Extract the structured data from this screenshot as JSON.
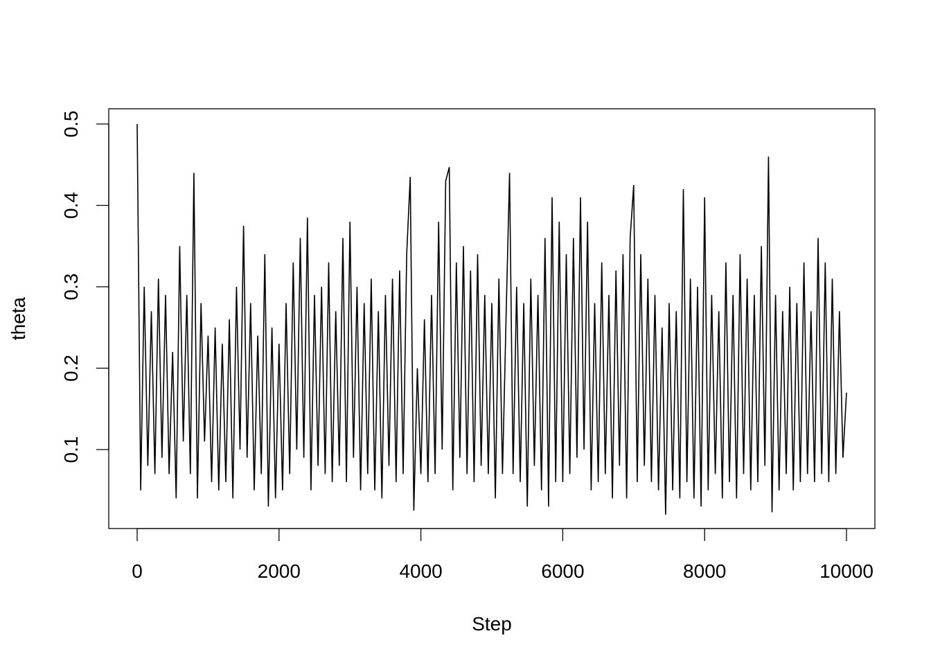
{
  "chart_data": {
    "type": "line",
    "title": "",
    "xlabel": "Step",
    "ylabel": "theta",
    "xlim": [
      0,
      10000
    ],
    "ylim": [
      0.02,
      0.5
    ],
    "grid": false,
    "x_ticks": [
      "0",
      "2000",
      "4000",
      "6000",
      "8000",
      "10000"
    ],
    "x_tick_values": [
      0,
      2000,
      4000,
      6000,
      8000,
      10000
    ],
    "y_ticks": [
      "0.1",
      "0.2",
      "0.3",
      "0.4",
      "0.5"
    ],
    "y_tick_values": [
      0.1,
      0.2,
      0.3,
      0.4,
      0.5
    ],
    "line_color": "#000000",
    "series": [
      {
        "x": [
          0,
          50,
          100,
          150,
          200,
          250,
          300,
          350,
          400,
          450,
          500,
          550,
          600,
          650,
          700,
          750,
          800,
          850,
          900,
          950,
          1000,
          1050,
          1100,
          1150,
          1200,
          1250,
          1300,
          1350,
          1400,
          1450,
          1500,
          1550,
          1600,
          1650,
          1700,
          1750,
          1800,
          1850,
          1900,
          1950,
          2000,
          2050,
          2100,
          2150,
          2200,
          2250,
          2300,
          2350,
          2400,
          2450,
          2500,
          2550,
          2600,
          2650,
          2700,
          2750,
          2800,
          2850,
          2900,
          2950,
          3000,
          3050,
          3100,
          3150,
          3200,
          3250,
          3300,
          3350,
          3400,
          3450,
          3500,
          3550,
          3600,
          3650,
          3700,
          3750,
          3800,
          3850,
          3900,
          3950,
          4000,
          4050,
          4100,
          4150,
          4200,
          4250,
          4300,
          4350,
          4400,
          4450,
          4500,
          4550,
          4600,
          4650,
          4700,
          4750,
          4800,
          4850,
          4900,
          4950,
          5000,
          5050,
          5100,
          5150,
          5200,
          5250,
          5300,
          5350,
          5400,
          5450,
          5500,
          5550,
          5600,
          5650,
          5700,
          5750,
          5800,
          5850,
          5900,
          5950,
          6000,
          6050,
          6100,
          6150,
          6200,
          6250,
          6300,
          6350,
          6400,
          6450,
          6500,
          6550,
          6600,
          6650,
          6700,
          6750,
          6800,
          6850,
          6900,
          6950,
          7000,
          7050,
          7100,
          7150,
          7200,
          7250,
          7300,
          7350,
          7400,
          7450,
          7500,
          7550,
          7600,
          7650,
          7700,
          7750,
          7800,
          7850,
          7900,
          7950,
          8000,
          8050,
          8100,
          8150,
          8200,
          8250,
          8300,
          8350,
          8400,
          8450,
          8500,
          8550,
          8600,
          8650,
          8700,
          8750,
          8800,
          8850,
          8900,
          8950,
          9000,
          9050,
          9100,
          9150,
          9200,
          9250,
          9300,
          9350,
          9400,
          9450,
          9500,
          9550,
          9600,
          9650,
          9700,
          9750,
          9800,
          9850,
          9900,
          9950,
          10000
        ],
        "y": [
          0.5,
          0.05,
          0.3,
          0.08,
          0.27,
          0.07,
          0.31,
          0.09,
          0.29,
          0.07,
          0.22,
          0.04,
          0.35,
          0.11,
          0.29,
          0.07,
          0.44,
          0.04,
          0.28,
          0.11,
          0.24,
          0.06,
          0.25,
          0.05,
          0.23,
          0.06,
          0.26,
          0.04,
          0.3,
          0.1,
          0.375,
          0.09,
          0.28,
          0.05,
          0.24,
          0.07,
          0.34,
          0.03,
          0.25,
          0.04,
          0.23,
          0.05,
          0.28,
          0.07,
          0.33,
          0.1,
          0.36,
          0.09,
          0.385,
          0.05,
          0.29,
          0.08,
          0.3,
          0.07,
          0.33,
          0.06,
          0.27,
          0.08,
          0.36,
          0.06,
          0.38,
          0.09,
          0.3,
          0.05,
          0.28,
          0.07,
          0.31,
          0.05,
          0.27,
          0.04,
          0.29,
          0.08,
          0.31,
          0.06,
          0.32,
          0.07,
          0.34,
          0.435,
          0.025,
          0.2,
          0.07,
          0.26,
          0.06,
          0.29,
          0.07,
          0.38,
          0.1,
          0.43,
          0.447,
          0.05,
          0.33,
          0.09,
          0.35,
          0.07,
          0.32,
          0.06,
          0.34,
          0.08,
          0.29,
          0.07,
          0.28,
          0.04,
          0.31,
          0.07,
          0.26,
          0.44,
          0.07,
          0.3,
          0.06,
          0.28,
          0.03,
          0.31,
          0.08,
          0.29,
          0.05,
          0.36,
          0.03,
          0.41,
          0.06,
          0.38,
          0.06,
          0.34,
          0.07,
          0.36,
          0.09,
          0.41,
          0.1,
          0.38,
          0.05,
          0.28,
          0.06,
          0.33,
          0.07,
          0.29,
          0.04,
          0.32,
          0.08,
          0.34,
          0.04,
          0.36,
          0.425,
          0.06,
          0.34,
          0.08,
          0.31,
          0.06,
          0.29,
          0.05,
          0.25,
          0.02,
          0.28,
          0.05,
          0.27,
          0.04,
          0.42,
          0.06,
          0.31,
          0.04,
          0.3,
          0.03,
          0.41,
          0.05,
          0.29,
          0.07,
          0.27,
          0.04,
          0.33,
          0.06,
          0.29,
          0.04,
          0.34,
          0.07,
          0.31,
          0.05,
          0.29,
          0.06,
          0.35,
          0.08,
          0.46,
          0.023,
          0.29,
          0.05,
          0.27,
          0.07,
          0.3,
          0.05,
          0.28,
          0.06,
          0.33,
          0.07,
          0.27,
          0.06,
          0.36,
          0.07,
          0.33,
          0.06,
          0.31,
          0.07,
          0.27,
          0.09,
          0.17
        ]
      }
    ]
  }
}
